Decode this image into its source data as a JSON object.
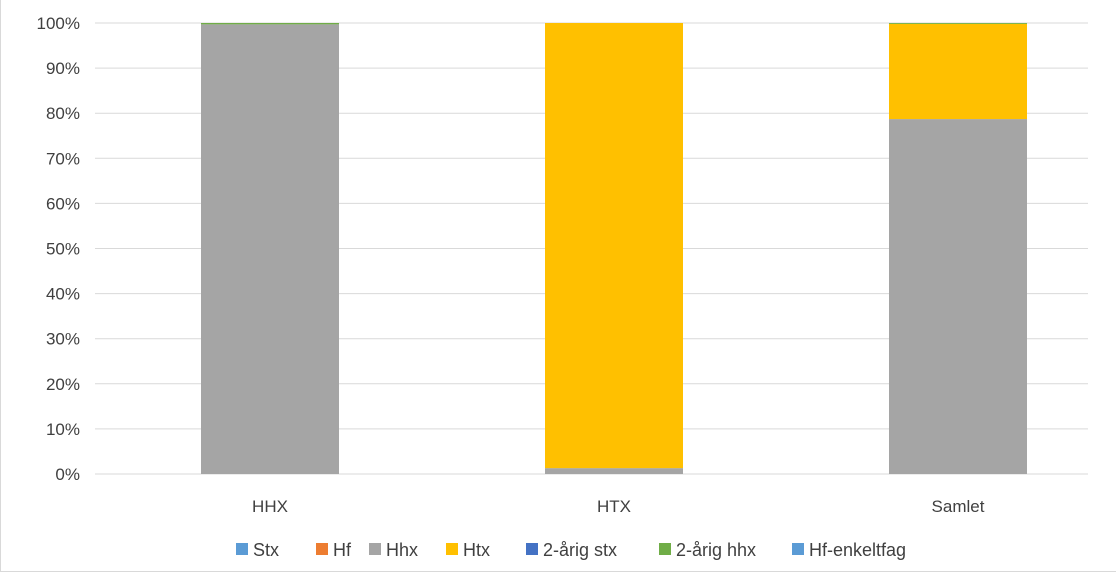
{
  "chart_data": {
    "type": "bar",
    "stacked": true,
    "percent": true,
    "categories": [
      "HHX",
      "HTX",
      "Samlet"
    ],
    "series": [
      {
        "name": "Stx",
        "color": "#5B9BD5",
        "values": [
          0,
          0,
          0
        ]
      },
      {
        "name": "Hf",
        "color": "#ED7D31",
        "values": [
          0,
          0,
          0
        ]
      },
      {
        "name": "Hhx",
        "color": "#A5A5A5",
        "values": [
          99.7,
          1.3,
          78.7
        ]
      },
      {
        "name": "Htx",
        "color": "#FFC000",
        "values": [
          0,
          98.7,
          21.1
        ]
      },
      {
        "name": "2-årig stx",
        "color": "#4472C4",
        "values": [
          0,
          0,
          0
        ]
      },
      {
        "name": "2-årig hhx",
        "color": "#70AD47",
        "values": [
          0.3,
          0,
          0.2
        ]
      },
      {
        "name": "Hf-enkeltfag",
        "color": "#5B9BD5",
        "values": [
          0,
          0,
          0
        ]
      }
    ],
    "ylim": [
      0,
      100
    ],
    "yticks": [
      "0%",
      "10%",
      "20%",
      "30%",
      "40%",
      "50%",
      "60%",
      "70%",
      "80%",
      "90%",
      "100%"
    ],
    "grid": true,
    "legend_position": "bottom",
    "title": "",
    "xlabel": "",
    "ylabel": ""
  }
}
